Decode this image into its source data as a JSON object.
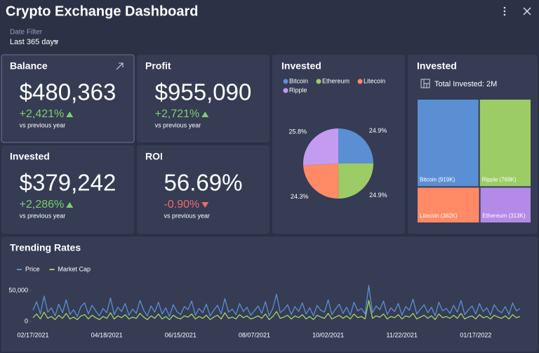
{
  "header": {
    "title": "Crypto Exchange Dashboard",
    "filter_label": "Date Filter",
    "filter_value": "Last 365 days"
  },
  "kpis": [
    {
      "title": "Balance",
      "value": "$480,363",
      "change": "+2,421%",
      "note": "vs previous year"
    },
    {
      "title": "Profit",
      "value": "$955,090",
      "change": "+2,721%",
      "note": "vs previous year"
    },
    {
      "title": "Invested",
      "value": "$379,242",
      "change": "+2,286%",
      "note": "vs previous year"
    },
    {
      "title": "ROI",
      "value": "56.69%",
      "change": "-0.90%",
      "note": "vs previous year"
    }
  ],
  "chart_data": [
    {
      "type": "pie",
      "title": "Invested",
      "categories": [
        "Bitcoin",
        "Ethereum",
        "Litecoin",
        "Ripple"
      ],
      "values": [
        24.9,
        24.9,
        24.3,
        25.8
      ],
      "value_labels": [
        "24.9%",
        "24.9%",
        "24.3%",
        "25.8%"
      ],
      "colors": [
        "#5b8fd4",
        "#9ccc65",
        "#ff8a65",
        "#c39bf0"
      ],
      "legend": "top"
    },
    {
      "type": "treemap",
      "title": "Invested",
      "subtitle": "Total Invested: 2M",
      "categories": [
        "Bitcoin",
        "Ripple",
        "Litecoin",
        "Ethereum"
      ],
      "values": [
        919000,
        769000,
        382000,
        313000
      ],
      "value_labels": [
        "Bitcoin (919K)",
        "Ripple (769K)",
        "Litecoin (382K)",
        "Ethereum (313K)"
      ],
      "colors": [
        "#5b8fd4",
        "#9ccc65",
        "#ff8a65",
        "#b48ae8"
      ]
    },
    {
      "type": "line",
      "title": "Trending Rates",
      "legend": "top-left",
      "categories": [
        "02/17/2021",
        null,
        null,
        null,
        null,
        null,
        null,
        null,
        null,
        null,
        null,
        null,
        null,
        null,
        null,
        null,
        null,
        null,
        null,
        null,
        "04/18/2021",
        null,
        null,
        null,
        null,
        null,
        null,
        null,
        null,
        null,
        null,
        null,
        null,
        null,
        null,
        null,
        null,
        null,
        null,
        null,
        "06/15/2021",
        null,
        null,
        null,
        null,
        null,
        null,
        null,
        null,
        null,
        null,
        null,
        null,
        null,
        null,
        null,
        null,
        null,
        null,
        null,
        "08/07/2021",
        null,
        null,
        null,
        null,
        null,
        null,
        null,
        null,
        null,
        null,
        null,
        null,
        null,
        null,
        null,
        null,
        null,
        null,
        null,
        "10/02/2021",
        null,
        null,
        null,
        null,
        null,
        null,
        null,
        null,
        null,
        null,
        null,
        null,
        null,
        null,
        null,
        null,
        null,
        null,
        null,
        "11/22/2021",
        null,
        null,
        null,
        null,
        null,
        null,
        null,
        null,
        null,
        null,
        null,
        null,
        null,
        null,
        null,
        null,
        null,
        null,
        null,
        "01/17/2022",
        null,
        null,
        null,
        null,
        null,
        null,
        null,
        null,
        null,
        null,
        null,
        null
      ],
      "ylim": [
        0,
        60000
      ],
      "yticks": [
        0,
        {
          "value": 50000,
          "label": "50,000"
        }
      ],
      "series": [
        {
          "name": "Price",
          "color": "#5b8fd4",
          "values": [
            18000,
            32000,
            12000,
            41000,
            15000,
            22000,
            9000,
            28000,
            14000,
            35000,
            11000,
            19000,
            8000,
            24000,
            30000,
            12000,
            26000,
            17000,
            9000,
            21000,
            14000,
            38000,
            11000,
            23000,
            16000,
            29000,
            10000,
            20000,
            13000,
            34000,
            18000,
            9000,
            25000,
            15000,
            31000,
            12000,
            22000,
            8000,
            27000,
            16000,
            11000,
            24000,
            19000,
            33000,
            10000,
            21000,
            14000,
            28000,
            9000,
            18000,
            26000,
            12000,
            37000,
            15000,
            20000,
            11000,
            29000,
            16000,
            23000,
            10000,
            17000,
            25000,
            13000,
            32000,
            9000,
            21000,
            44000,
            14000,
            19000,
            27000,
            11000,
            24000,
            16000,
            30000,
            12000,
            22000,
            9000,
            26000,
            18000,
            15000,
            35000,
            11000,
            20000,
            28000,
            13000,
            23000,
            10000,
            31000,
            17000,
            21000,
            12000,
            58000,
            14000,
            25000,
            19000,
            33000,
            11000,
            22000,
            16000,
            29000,
            10000,
            24000,
            18000,
            36000,
            12000,
            20000,
            27000,
            14000,
            23000,
            9000,
            31000,
            17000,
            21000,
            13000,
            26000,
            15000,
            34000,
            11000,
            19000,
            25000,
            12000,
            29000,
            16000,
            22000,
            10000,
            27000,
            18000,
            14000,
            24000,
            11000,
            30000,
            17000,
            21000
          ]
        },
        {
          "name": "Market Cap",
          "color": "#a4d65e",
          "values": [
            6000,
            12000,
            4000,
            15000,
            5000,
            8000,
            3000,
            10000,
            5000,
            13000,
            4000,
            7000,
            3000,
            9000,
            11000,
            4000,
            10000,
            6000,
            3000,
            8000,
            5000,
            14000,
            4000,
            9000,
            6000,
            11000,
            4000,
            7000,
            5000,
            13000,
            7000,
            3000,
            9000,
            5000,
            12000,
            4000,
            8000,
            3000,
            10000,
            6000,
            4000,
            9000,
            7000,
            12000,
            4000,
            8000,
            5000,
            10000,
            3000,
            7000,
            10000,
            4000,
            14000,
            5000,
            7000,
            4000,
            11000,
            6000,
            9000,
            4000,
            6000,
            9000,
            5000,
            12000,
            3000,
            8000,
            16000,
            5000,
            7000,
            10000,
            4000,
            9000,
            6000,
            11000,
            4000,
            8000,
            3000,
            10000,
            7000,
            5000,
            13000,
            4000,
            7000,
            10000,
            5000,
            9000,
            4000,
            12000,
            6000,
            8000,
            4000,
            34000,
            5000,
            9000,
            7000,
            12000,
            4000,
            8000,
            6000,
            11000,
            4000,
            9000,
            7000,
            13000,
            4000,
            7000,
            10000,
            5000,
            9000,
            3000,
            12000,
            6000,
            8000,
            5000,
            10000,
            5000,
            13000,
            4000,
            7000,
            9000,
            4000,
            11000,
            6000,
            8000,
            4000,
            10000,
            7000,
            5000,
            9000,
            4000,
            11000,
            6000,
            8000
          ]
        }
      ]
    }
  ]
}
